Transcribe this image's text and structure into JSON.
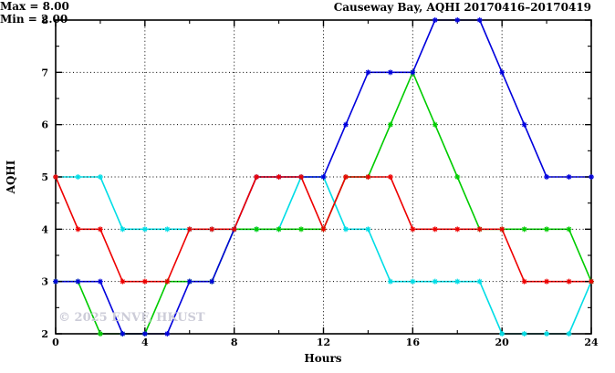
{
  "header": {
    "title": "Causeway Bay, AQHI 20170416–20170419"
  },
  "annotation": {
    "max_label": "Max = 8.00",
    "min_label": "Min = 2.00"
  },
  "watermark": "© 2025 ENVF, HKUST",
  "chart_data": {
    "type": "line",
    "title": "Causeway Bay, AQHI 20170416–20170419",
    "xlabel": "Hours",
    "ylabel": "AQHI",
    "xlim": [
      0,
      24
    ],
    "ylim": [
      2,
      8
    ],
    "x_major_ticks": [
      0,
      4,
      8,
      12,
      16,
      20,
      24
    ],
    "x_minor_ticks": [
      2,
      6,
      10,
      14,
      18,
      22
    ],
    "y_major_ticks": [
      2,
      3,
      4,
      5,
      6,
      7,
      8
    ],
    "y_minor_ticks": [
      2.5,
      3.5,
      4.5,
      5.5,
      6.5,
      7.5
    ],
    "grid": {
      "x": [
        4,
        8,
        12,
        16,
        20
      ],
      "y": [
        3,
        4,
        5,
        6,
        7
      ],
      "style": "dotted"
    },
    "legend_position": "none",
    "x": [
      0,
      1,
      2,
      3,
      4,
      5,
      6,
      7,
      8,
      9,
      10,
      11,
      12,
      13,
      14,
      15,
      16,
      17,
      18,
      19,
      20,
      21,
      22,
      23,
      24
    ],
    "series": [
      {
        "name": "cyan-line",
        "color": "#00dde6",
        "values": [
          5,
          5,
          5,
          4,
          4,
          4,
          4,
          4,
          4,
          4,
          4,
          5,
          5,
          4,
          4,
          3,
          3,
          3,
          3,
          3,
          2,
          2,
          2,
          2,
          3
        ]
      },
      {
        "name": "green-line",
        "color": "#00cc00",
        "values": [
          3,
          3,
          2,
          2,
          2,
          3,
          3,
          3,
          4,
          4,
          4,
          4,
          4,
          5,
          5,
          6,
          7,
          6,
          5,
          4,
          4,
          4,
          4,
          4,
          3
        ]
      },
      {
        "name": "blue-line",
        "color": "#0000dd",
        "values": [
          3,
          3,
          3,
          2,
          2,
          2,
          3,
          3,
          4,
          5,
          5,
          5,
          5,
          6,
          7,
          7,
          7,
          8,
          8,
          8,
          7,
          6,
          5,
          5,
          5
        ]
      },
      {
        "name": "red-line",
        "color": "#ee0000",
        "values": [
          5,
          4,
          4,
          3,
          3,
          3,
          4,
          4,
          4,
          5,
          5,
          5,
          4,
          5,
          5,
          5,
          4,
          4,
          4,
          4,
          4,
          3,
          3,
          3,
          3
        ]
      }
    ],
    "annotations": [
      "Max = 8.00",
      "Min = 2.00"
    ],
    "stats": {
      "max": 8.0,
      "min": 2.0
    }
  }
}
